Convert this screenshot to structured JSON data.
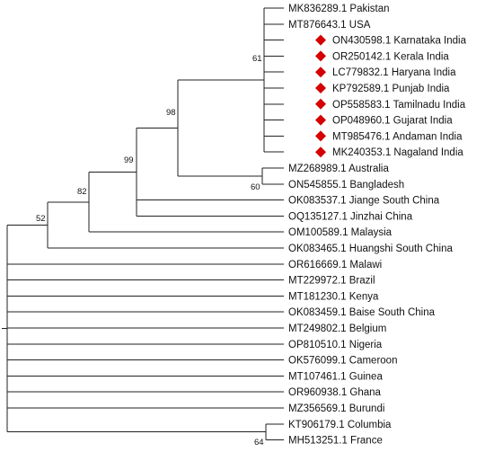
{
  "tree": {
    "marker_color": "#d40000",
    "leaves": [
      {
        "label": "MK836289.1 Pakistan",
        "highlighted": false
      },
      {
        "label": "MT876643.1 USA",
        "highlighted": false
      },
      {
        "label": "ON430598.1 Karnataka India",
        "highlighted": true
      },
      {
        "label": "OR250142.1 Kerala India",
        "highlighted": true
      },
      {
        "label": "LC779832.1 Haryana India",
        "highlighted": true
      },
      {
        "label": "KP792589.1 Punjab India",
        "highlighted": true
      },
      {
        "label": "OP558583.1 Tamilnadu India",
        "highlighted": true
      },
      {
        "label": "OP048960.1 Gujarat India",
        "highlighted": true
      },
      {
        "label": "MT985476.1 Andaman India",
        "highlighted": true
      },
      {
        "label": "MK240353.1 Nagaland India",
        "highlighted": true
      },
      {
        "label": "MZ268989.1 Australia",
        "highlighted": false
      },
      {
        "label": "ON545855.1 Bangladesh",
        "highlighted": false
      },
      {
        "label": "OK083537.1 Jiange South China",
        "highlighted": false
      },
      {
        "label": "OQ135127.1 Jinzhai China",
        "highlighted": false
      },
      {
        "label": "OM100589.1 Malaysia",
        "highlighted": false
      },
      {
        "label": "OK083465.1 Huangshi South China",
        "highlighted": false
      },
      {
        "label": "OR616669.1 Malawi",
        "highlighted": false
      },
      {
        "label": "MT229972.1 Brazil",
        "highlighted": false
      },
      {
        "label": "MT181230.1 Kenya",
        "highlighted": false
      },
      {
        "label": "OK083459.1 Baise South China",
        "highlighted": false
      },
      {
        "label": "MT249802.1 Belgium",
        "highlighted": false
      },
      {
        "label": "OP810510.1 Nigeria",
        "highlighted": false
      },
      {
        "label": "OK576099.1 Cameroon",
        "highlighted": false
      },
      {
        "label": "MT107461.1 Guinea",
        "highlighted": false
      },
      {
        "label": "OR960938.1 Ghana",
        "highlighted": false
      },
      {
        "label": "MZ356569.1 Burundi",
        "highlighted": false
      },
      {
        "label": "KT906179.1 Columbia",
        "highlighted": false
      },
      {
        "label": "MH513251.1 France",
        "highlighted": false
      }
    ],
    "bootstrap": [
      {
        "clade": "clade-india-usa-pakistan",
        "value": "61"
      },
      {
        "clade": "clade-australia-bangladesh",
        "value": "60"
      },
      {
        "clade": "clade-98",
        "value": "98"
      },
      {
        "clade": "clade-99",
        "value": "99"
      },
      {
        "clade": "clade-82",
        "value": "82"
      },
      {
        "clade": "clade-52",
        "value": "52"
      },
      {
        "clade": "clade-columbia-france",
        "value": "64"
      }
    ]
  }
}
